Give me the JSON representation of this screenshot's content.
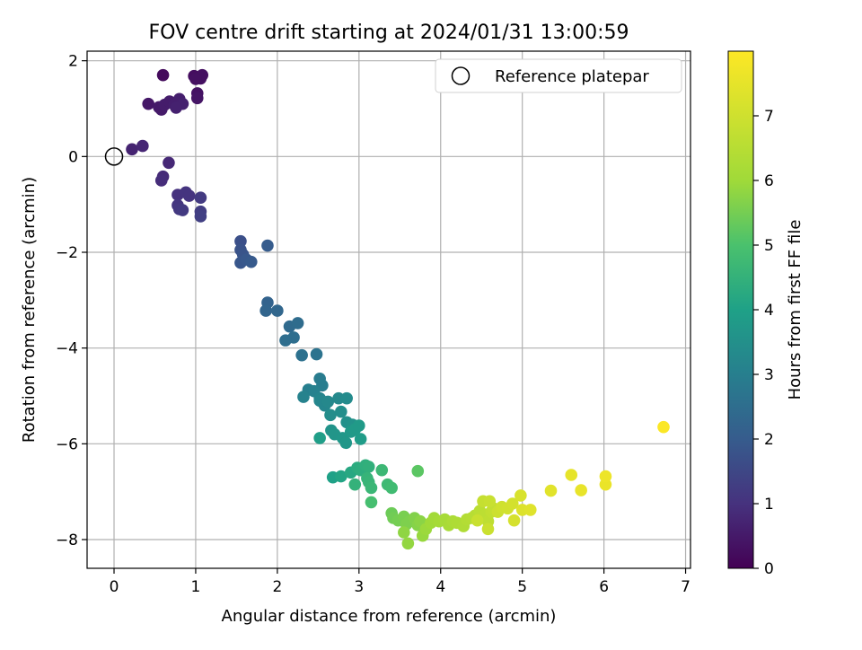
{
  "chart_data": {
    "type": "scatter",
    "title": "FOV centre drift starting at 2024/01/31 13:00:59",
    "xlabel": "Angular distance from reference (arcmin)",
    "ylabel": "Rotation from reference (arcmin)",
    "xlim": [
      -0.33,
      7.06
    ],
    "ylim": [
      -8.6,
      2.2
    ],
    "xticks": [
      "0",
      "1",
      "2",
      "3",
      "4",
      "5",
      "6",
      "7"
    ],
    "yticks": [
      "2",
      "0",
      "−2",
      "−4",
      "−6",
      "−8"
    ],
    "grid": true,
    "legend": {
      "label": "Reference platepar",
      "placement": "top-right"
    },
    "reference_point": {
      "x": 0,
      "y": 0
    },
    "colorbar": {
      "label": "Hours from first FF file",
      "colormap": "viridis",
      "range": [
        0,
        8
      ],
      "ticks": [
        "0",
        "1",
        "2",
        "3",
        "4",
        "5",
        "6",
        "7"
      ]
    },
    "points_xyt": [
      [
        0.6,
        1.7,
        0.2
      ],
      [
        0.98,
        1.68,
        0.25
      ],
      [
        1.08,
        1.7,
        0.3
      ],
      [
        1.06,
        1.63,
        0.3
      ],
      [
        1.0,
        1.62,
        0.3
      ],
      [
        1.02,
        1.32,
        0.35
      ],
      [
        1.02,
        1.22,
        0.4
      ],
      [
        0.42,
        1.1,
        0.45
      ],
      [
        0.55,
        1.03,
        0.5
      ],
      [
        0.58,
        0.98,
        0.5
      ],
      [
        0.62,
        1.08,
        0.55
      ],
      [
        0.68,
        1.15,
        0.55
      ],
      [
        0.74,
        1.08,
        0.6
      ],
      [
        0.8,
        1.2,
        0.6
      ],
      [
        0.84,
        1.1,
        0.65
      ],
      [
        0.76,
        1.02,
        0.65
      ],
      [
        0.22,
        0.15,
        0.7
      ],
      [
        0.35,
        0.22,
        0.75
      ],
      [
        0.67,
        -0.13,
        0.8
      ],
      [
        0.6,
        -0.42,
        0.85
      ],
      [
        0.58,
        -0.5,
        0.9
      ],
      [
        0.78,
        -0.8,
        1.0
      ],
      [
        0.88,
        -0.75,
        1.05
      ],
      [
        0.92,
        -0.82,
        1.05
      ],
      [
        0.78,
        -1.02,
        1.1
      ],
      [
        0.8,
        -1.1,
        1.15
      ],
      [
        0.84,
        -1.12,
        1.2
      ],
      [
        1.06,
        -0.86,
        1.2
      ],
      [
        1.06,
        -1.15,
        1.25
      ],
      [
        1.06,
        -1.25,
        1.3
      ],
      [
        1.55,
        -1.77,
        1.7
      ],
      [
        1.55,
        -1.95,
        1.75
      ],
      [
        1.58,
        -2.05,
        1.8
      ],
      [
        1.55,
        -2.22,
        1.85
      ],
      [
        1.62,
        -2.15,
        1.9
      ],
      [
        1.68,
        -2.2,
        1.95
      ],
      [
        1.88,
        -1.86,
        2.0
      ],
      [
        1.88,
        -3.05,
        2.2
      ],
      [
        1.86,
        -3.22,
        2.25
      ],
      [
        2.0,
        -3.22,
        2.3
      ],
      [
        2.15,
        -3.55,
        2.4
      ],
      [
        2.25,
        -3.48,
        2.45
      ],
      [
        2.2,
        -3.78,
        2.5
      ],
      [
        2.1,
        -3.84,
        2.5
      ],
      [
        2.3,
        -4.15,
        2.6
      ],
      [
        2.48,
        -4.13,
        2.65
      ],
      [
        2.52,
        -4.64,
        2.9
      ],
      [
        2.55,
        -4.78,
        2.95
      ],
      [
        2.38,
        -4.87,
        3.0
      ],
      [
        2.45,
        -4.9,
        3.05
      ],
      [
        2.32,
        -5.02,
        3.1
      ],
      [
        2.52,
        -5.05,
        3.15
      ],
      [
        2.58,
        -5.2,
        3.2
      ],
      [
        2.52,
        -5.1,
        3.2
      ],
      [
        2.62,
        -5.12,
        3.25
      ],
      [
        2.75,
        -5.05,
        3.3
      ],
      [
        2.85,
        -5.05,
        3.35
      ],
      [
        2.65,
        -5.4,
        3.4
      ],
      [
        2.78,
        -5.33,
        3.45
      ],
      [
        2.85,
        -5.55,
        3.5
      ],
      [
        2.92,
        -5.6,
        3.55
      ],
      [
        2.66,
        -5.72,
        3.6
      ],
      [
        2.7,
        -5.8,
        3.65
      ],
      [
        2.8,
        -5.88,
        3.7
      ],
      [
        2.84,
        -5.98,
        3.7
      ],
      [
        2.9,
        -5.75,
        3.75
      ],
      [
        2.95,
        -5.7,
        3.8
      ],
      [
        3.0,
        -5.62,
        3.8
      ],
      [
        3.02,
        -5.9,
        3.85
      ],
      [
        2.52,
        -5.88,
        3.9
      ],
      [
        2.68,
        -6.7,
        4.0
      ],
      [
        2.78,
        -6.68,
        4.1
      ],
      [
        2.9,
        -6.6,
        4.2
      ],
      [
        2.98,
        -6.5,
        4.3
      ],
      [
        3.02,
        -6.55,
        4.35
      ],
      [
        3.08,
        -6.45,
        4.4
      ],
      [
        3.12,
        -6.48,
        4.45
      ],
      [
        2.95,
        -6.85,
        4.5
      ],
      [
        3.1,
        -6.72,
        4.55
      ],
      [
        3.12,
        -6.8,
        4.6
      ],
      [
        3.15,
        -6.92,
        4.65
      ],
      [
        3.28,
        -6.55,
        4.7
      ],
      [
        3.35,
        -6.85,
        4.75
      ],
      [
        3.4,
        -6.92,
        4.8
      ],
      [
        3.15,
        -7.22,
        4.9
      ],
      [
        3.72,
        -6.57,
        5.2
      ],
      [
        3.4,
        -7.45,
        5.4
      ],
      [
        3.42,
        -7.55,
        5.45
      ],
      [
        3.48,
        -7.6,
        5.5
      ],
      [
        3.55,
        -7.52,
        5.55
      ],
      [
        3.58,
        -7.68,
        5.6
      ],
      [
        3.62,
        -7.62,
        5.6
      ],
      [
        3.68,
        -7.55,
        5.65
      ],
      [
        3.72,
        -7.7,
        5.7
      ],
      [
        3.75,
        -7.62,
        5.75
      ],
      [
        3.55,
        -7.85,
        5.8
      ],
      [
        3.6,
        -8.08,
        5.85
      ],
      [
        3.78,
        -7.92,
        5.9
      ],
      [
        3.82,
        -7.78,
        5.95
      ],
      [
        3.88,
        -7.65,
        6.0
      ],
      [
        3.92,
        -7.55,
        6.05
      ],
      [
        3.98,
        -7.62,
        6.1
      ],
      [
        4.05,
        -7.58,
        6.15
      ],
      [
        4.1,
        -7.7,
        6.2
      ],
      [
        4.15,
        -7.62,
        6.25
      ],
      [
        4.2,
        -7.65,
        6.3
      ],
      [
        4.28,
        -7.72,
        6.35
      ],
      [
        4.32,
        -7.58,
        6.4
      ],
      [
        4.38,
        -7.55,
        6.45
      ],
      [
        4.42,
        -7.5,
        6.5
      ],
      [
        4.48,
        -7.4,
        6.55
      ],
      [
        4.5,
        -7.52,
        6.6
      ],
      [
        4.55,
        -7.48,
        6.6
      ],
      [
        4.58,
        -7.62,
        6.65
      ],
      [
        4.62,
        -7.42,
        6.7
      ],
      [
        4.65,
        -7.35,
        6.75
      ],
      [
        4.52,
        -7.2,
        6.8
      ],
      [
        4.6,
        -7.2,
        6.85
      ],
      [
        4.45,
        -7.6,
        6.85
      ],
      [
        4.58,
        -7.78,
        6.9
      ],
      [
        4.7,
        -7.42,
        6.95
      ],
      [
        4.75,
        -7.32,
        7.0
      ],
      [
        4.82,
        -7.35,
        7.05
      ],
      [
        4.88,
        -7.25,
        7.1
      ],
      [
        4.9,
        -7.6,
        7.15
      ],
      [
        4.98,
        -7.08,
        7.2
      ],
      [
        5.0,
        -7.38,
        7.3
      ],
      [
        5.1,
        -7.38,
        7.35
      ],
      [
        5.35,
        -6.98,
        7.4
      ],
      [
        5.6,
        -6.65,
        7.5
      ],
      [
        5.72,
        -6.97,
        7.55
      ],
      [
        6.02,
        -6.85,
        7.6
      ],
      [
        6.02,
        -6.68,
        7.65
      ],
      [
        6.73,
        -5.65,
        7.95
      ]
    ]
  }
}
